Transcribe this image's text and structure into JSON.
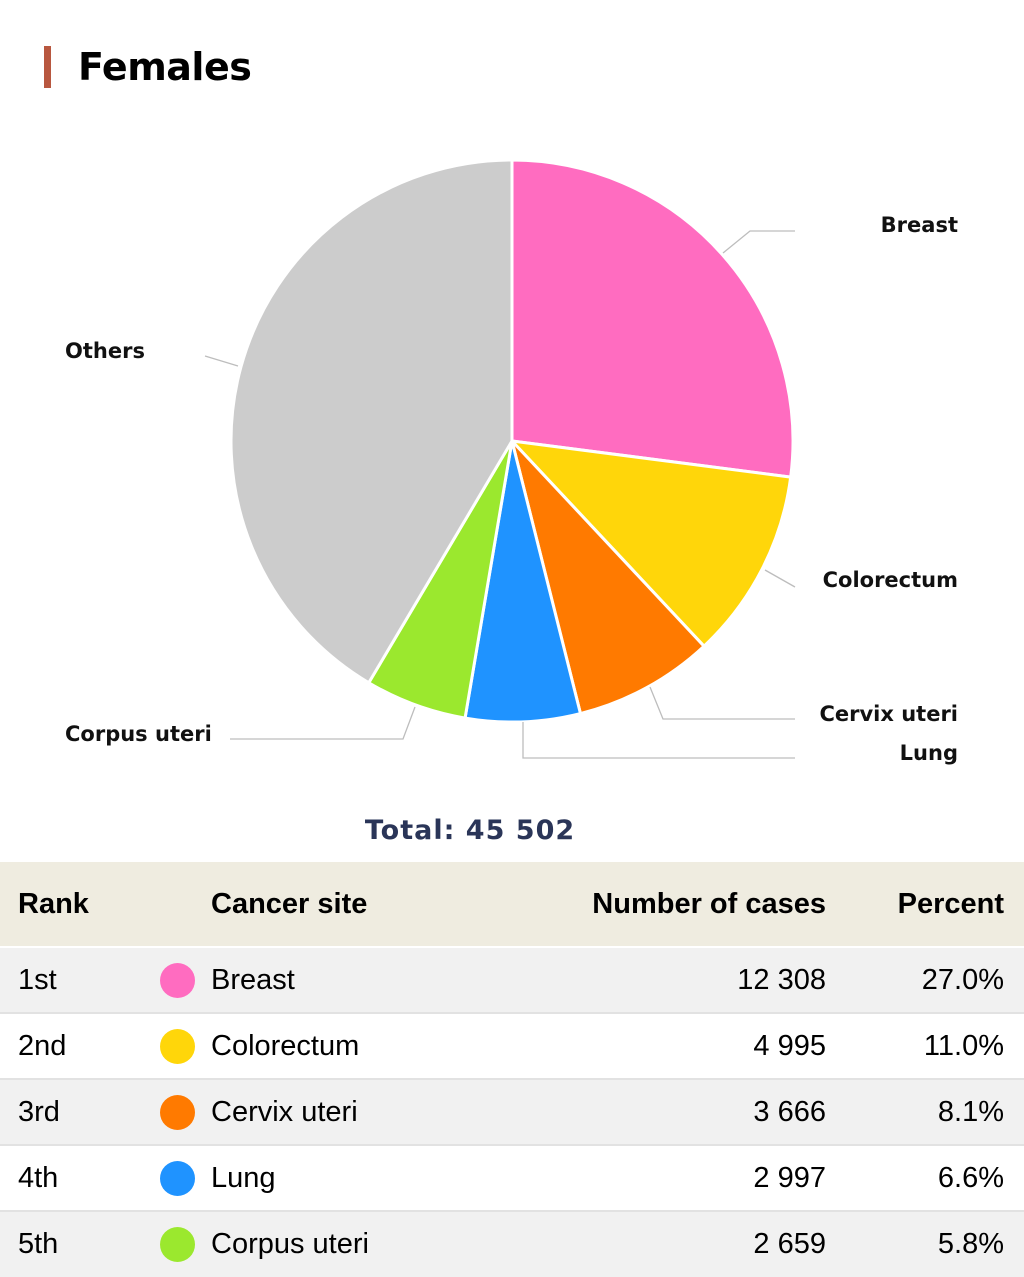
{
  "title": "Females",
  "total_label": "Total: 45 502",
  "table": {
    "headers": {
      "rank": "Rank",
      "site": "Cancer site",
      "cases": "Number of cases",
      "percent": "Percent"
    },
    "rows": [
      {
        "rank": "1st",
        "site": "Breast",
        "cases": "12 308",
        "percent": "27.0%",
        "color": "#ff6cc0"
      },
      {
        "rank": "2nd",
        "site": "Colorectum",
        "cases": "4 995",
        "percent": "11.0%",
        "color": "#ffd60a"
      },
      {
        "rank": "3rd",
        "site": "Cervix uteri",
        "cases": "3 666",
        "percent": "8.1%",
        "color": "#ff7a00"
      },
      {
        "rank": "4th",
        "site": "Lung",
        "cases": "2 997",
        "percent": "6.6%",
        "color": "#1f93ff"
      },
      {
        "rank": "5th",
        "site": "Corpus uteri",
        "cases": "2 659",
        "percent": "5.8%",
        "color": "#9be82e"
      }
    ]
  },
  "chart_data": {
    "type": "pie",
    "total": 45502,
    "slices": [
      {
        "label": "Breast",
        "value": 12308,
        "color": "#ff6cc0"
      },
      {
        "label": "Colorectum",
        "value": 4995,
        "color": "#ffd60a"
      },
      {
        "label": "Cervix uteri",
        "value": 3666,
        "color": "#ff7a00"
      },
      {
        "label": "Lung",
        "value": 2997,
        "color": "#1f93ff"
      },
      {
        "label": "Corpus uteri",
        "value": 2659,
        "color": "#9be82e"
      },
      {
        "label": "Others",
        "value": 18877,
        "color": "#cccccc"
      }
    ]
  }
}
